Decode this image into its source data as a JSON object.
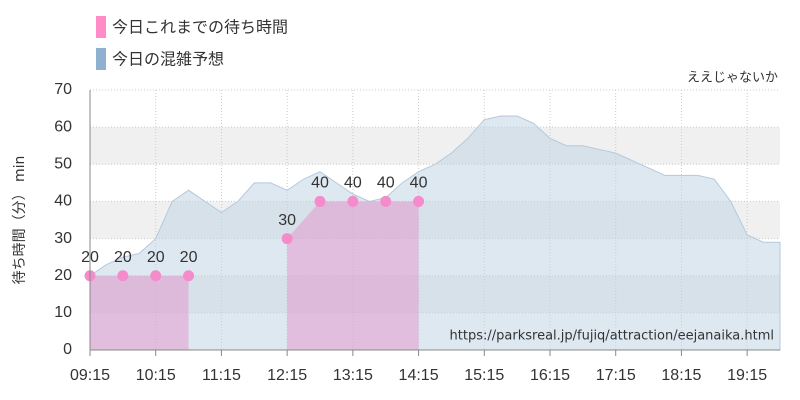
{
  "chart_data": {
    "type": "area",
    "annotation": "ええじゃないか",
    "y_label": "待ち時間（分） min",
    "source": "https://parksreal.jp/fujiq/attraction/eejanaika.html",
    "xlim": [
      "09:15",
      "19:45"
    ],
    "xticks": [
      "09:15",
      "10:15",
      "11:15",
      "12:15",
      "13:15",
      "14:15",
      "15:15",
      "16:15",
      "17:15",
      "18:15",
      "19:15"
    ],
    "ylim": [
      0,
      70
    ],
    "yticks": [
      0,
      10,
      20,
      30,
      40,
      50,
      60,
      70
    ],
    "grid": true,
    "series": [
      {
        "name": "今日これまでの待ち時間",
        "color": "#f48ccb",
        "points": true,
        "x": [
          "09:15",
          "09:45",
          "10:15",
          "10:45",
          "11:30",
          "12:15",
          "12:45",
          "13:15",
          "13:45",
          "14:15"
        ],
        "values": [
          20,
          20,
          20,
          20,
          null,
          30,
          40,
          40,
          40,
          40
        ]
      },
      {
        "name": "今日の混雑予想",
        "color": "#8fb0cf",
        "points": false,
        "x": [
          "09:15",
          "09:30",
          "09:45",
          "10:00",
          "10:15",
          "10:30",
          "10:45",
          "11:00",
          "11:15",
          "11:30",
          "11:45",
          "12:00",
          "12:15",
          "12:30",
          "12:45",
          "13:00",
          "13:15",
          "13:30",
          "13:45",
          "14:00",
          "14:15",
          "14:30",
          "14:45",
          "15:00",
          "15:15",
          "15:30",
          "15:45",
          "16:00",
          "16:15",
          "16:30",
          "16:45",
          "17:00",
          "17:15",
          "17:30",
          "17:45",
          "18:00",
          "18:15",
          "18:30",
          "18:45",
          "19:00",
          "19:15",
          "19:30",
          "19:45"
        ],
        "values": [
          20,
          23,
          25,
          26,
          30,
          40,
          43,
          40,
          37,
          40,
          45,
          45,
          43,
          46,
          48,
          45,
          42,
          40,
          41,
          45,
          48,
          50,
          53,
          57,
          62,
          63,
          63,
          61,
          57,
          55,
          55,
          54,
          53,
          51,
          49,
          47,
          47,
          47,
          46,
          40,
          31,
          29,
          29
        ]
      }
    ]
  }
}
